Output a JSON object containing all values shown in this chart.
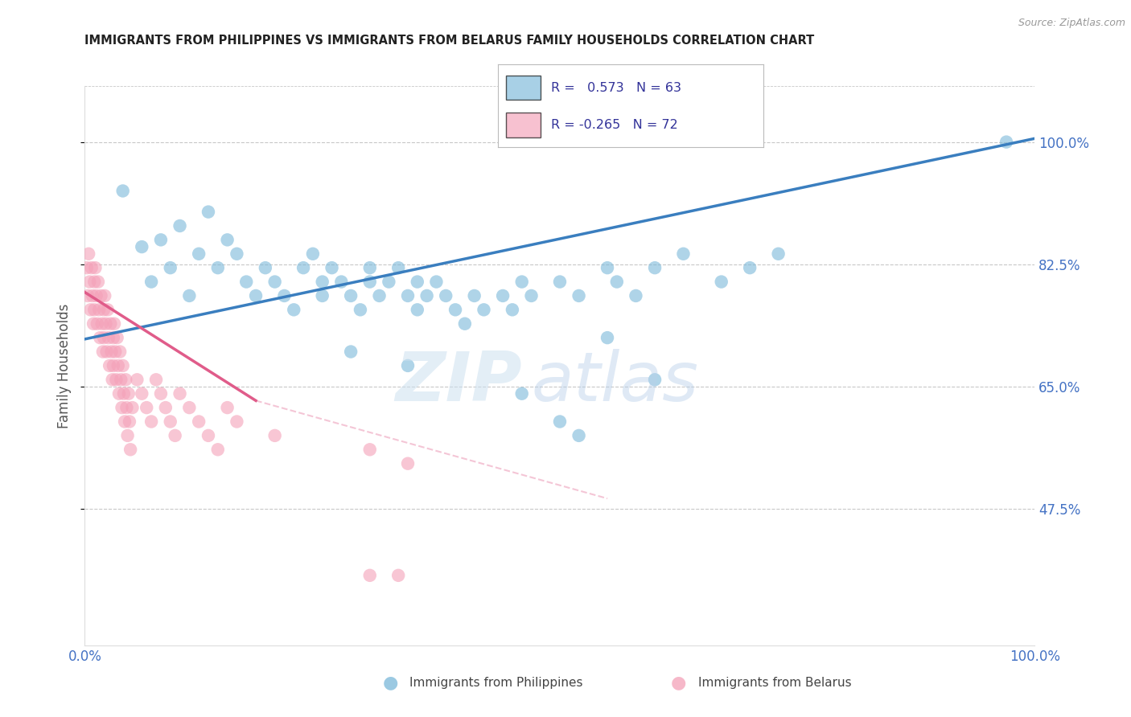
{
  "title": "IMMIGRANTS FROM PHILIPPINES VS IMMIGRANTS FROM BELARUS FAMILY HOUSEHOLDS CORRELATION CHART",
  "source": "Source: ZipAtlas.com",
  "ylabel": "Family Households",
  "xlim": [
    0.0,
    1.0
  ],
  "ylim": [
    0.28,
    1.08
  ],
  "yticks": [
    0.475,
    0.65,
    0.825,
    1.0
  ],
  "ytick_labels": [
    "47.5%",
    "65.0%",
    "82.5%",
    "100.0%"
  ],
  "xticks": [
    0.0,
    0.25,
    0.5,
    0.75,
    1.0
  ],
  "xtick_labels": [
    "0.0%",
    "",
    "",
    "",
    "100.0%"
  ],
  "philippines_R": 0.573,
  "philippines_N": 63,
  "belarus_R": -0.265,
  "belarus_N": 72,
  "philippines_color": "#7ab8d9",
  "belarus_color": "#f4a0b8",
  "philippines_line_color": "#3a7ebf",
  "belarus_line_color": "#e05c8a",
  "background_color": "#ffffff",
  "grid_color": "#c8c8c8",
  "title_color": "#222222",
  "axis_label_color": "#555555",
  "right_axis_color": "#4472c4",
  "philippines_x": [
    0.04,
    0.06,
    0.07,
    0.08,
    0.09,
    0.1,
    0.11,
    0.12,
    0.13,
    0.14,
    0.15,
    0.16,
    0.17,
    0.18,
    0.19,
    0.2,
    0.21,
    0.22,
    0.23,
    0.24,
    0.25,
    0.25,
    0.26,
    0.27,
    0.28,
    0.29,
    0.3,
    0.3,
    0.31,
    0.32,
    0.33,
    0.34,
    0.35,
    0.35,
    0.36,
    0.37,
    0.38,
    0.39,
    0.4,
    0.41,
    0.42,
    0.44,
    0.45,
    0.46,
    0.47,
    0.5,
    0.52,
    0.55,
    0.56,
    0.58,
    0.6,
    0.63,
    0.67,
    0.7,
    0.73,
    0.97,
    0.34,
    0.28,
    0.46,
    0.5,
    0.52,
    0.55,
    0.6
  ],
  "philippines_y": [
    0.93,
    0.85,
    0.8,
    0.86,
    0.82,
    0.88,
    0.78,
    0.84,
    0.9,
    0.82,
    0.86,
    0.84,
    0.8,
    0.78,
    0.82,
    0.8,
    0.78,
    0.76,
    0.82,
    0.84,
    0.8,
    0.78,
    0.82,
    0.8,
    0.78,
    0.76,
    0.8,
    0.82,
    0.78,
    0.8,
    0.82,
    0.78,
    0.8,
    0.76,
    0.78,
    0.8,
    0.78,
    0.76,
    0.74,
    0.78,
    0.76,
    0.78,
    0.76,
    0.8,
    0.78,
    0.8,
    0.78,
    0.82,
    0.8,
    0.78,
    0.82,
    0.84,
    0.8,
    0.82,
    0.84,
    1.0,
    0.68,
    0.7,
    0.64,
    0.6,
    0.58,
    0.72,
    0.66
  ],
  "belarus_x": [
    0.002,
    0.003,
    0.004,
    0.005,
    0.006,
    0.007,
    0.008,
    0.009,
    0.01,
    0.01,
    0.011,
    0.012,
    0.013,
    0.014,
    0.015,
    0.016,
    0.017,
    0.018,
    0.019,
    0.02,
    0.02,
    0.021,
    0.022,
    0.023,
    0.024,
    0.025,
    0.026,
    0.027,
    0.028,
    0.029,
    0.03,
    0.03,
    0.031,
    0.032,
    0.033,
    0.034,
    0.035,
    0.036,
    0.037,
    0.038,
    0.039,
    0.04,
    0.041,
    0.042,
    0.043,
    0.044,
    0.045,
    0.046,
    0.047,
    0.048,
    0.05,
    0.055,
    0.06,
    0.065,
    0.07,
    0.075,
    0.08,
    0.085,
    0.09,
    0.095,
    0.1,
    0.11,
    0.12,
    0.13,
    0.14,
    0.15,
    0.16,
    0.2,
    0.3,
    0.34,
    0.3,
    0.33
  ],
  "belarus_y": [
    0.82,
    0.78,
    0.84,
    0.8,
    0.76,
    0.82,
    0.78,
    0.74,
    0.8,
    0.76,
    0.82,
    0.78,
    0.74,
    0.8,
    0.76,
    0.72,
    0.78,
    0.74,
    0.7,
    0.76,
    0.72,
    0.78,
    0.74,
    0.7,
    0.76,
    0.72,
    0.68,
    0.74,
    0.7,
    0.66,
    0.72,
    0.68,
    0.74,
    0.7,
    0.66,
    0.72,
    0.68,
    0.64,
    0.7,
    0.66,
    0.62,
    0.68,
    0.64,
    0.6,
    0.66,
    0.62,
    0.58,
    0.64,
    0.6,
    0.56,
    0.62,
    0.66,
    0.64,
    0.62,
    0.6,
    0.66,
    0.64,
    0.62,
    0.6,
    0.58,
    0.64,
    0.62,
    0.6,
    0.58,
    0.56,
    0.62,
    0.6,
    0.58,
    0.56,
    0.54,
    0.38,
    0.38
  ],
  "phil_line_x0": 0.0,
  "phil_line_x1": 1.0,
  "phil_line_y0": 0.718,
  "phil_line_y1": 1.005,
  "bel_line_solid_x0": 0.0,
  "bel_line_solid_x1": 0.18,
  "bel_line_dashed_x1": 0.55,
  "bel_line_y0": 0.785,
  "bel_line_y1_solid": 0.63,
  "bel_line_y1_dashed": 0.49
}
